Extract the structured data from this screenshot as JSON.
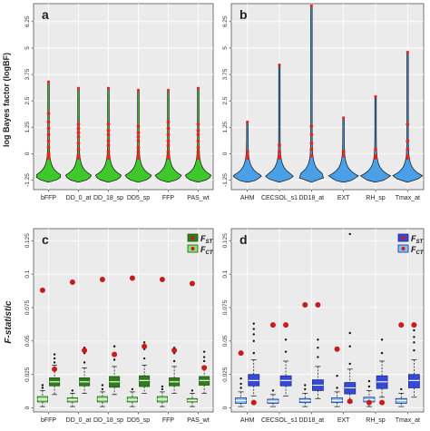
{
  "colors": {
    "green_fill": "#3ec82c",
    "green_dark": "#2f7d1b",
    "green_light": "#8fe07a",
    "blue_fill": "#4aa0e6",
    "blue_dark": "#3648d6",
    "blue_light": "#88bff0",
    "red_point": "#e8231c",
    "dark_red_point": "#c41d1d",
    "panel_bg": "#ebebeb",
    "grid": "#ffffff"
  },
  "chart_data": [
    {
      "id": "a",
      "type": "violin",
      "panel_label": "a",
      "ylabel": "log Bayes factor (logBF)",
      "yticks": [
        "-1.25",
        "0",
        "1.25",
        "2.5",
        "3.75",
        "5",
        "6.25"
      ],
      "ylim": [
        -1.7,
        7.1
      ],
      "categories": [
        "bFFP",
        "DD_0_at",
        "DD_18_sp",
        "DD5_sp",
        "FFP",
        "PAS_wt"
      ],
      "max_logbf": [
        3.4,
        3.1,
        3.1,
        3.0,
        3.0,
        3.1
      ],
      "mode": -1.05,
      "significant_points": [
        [
          1.9,
          1.5,
          1.2,
          0.9,
          0.6,
          0.3,
          0.0,
          -0.1,
          -0.2
        ],
        [
          1.4,
          1.2,
          1.0,
          0.8,
          0.5,
          0.2,
          -0.1,
          -0.2
        ],
        [
          1.4,
          1.1,
          0.9,
          0.6,
          0.4,
          0.1,
          -0.1,
          -0.2
        ],
        [
          1.3,
          1.0,
          0.8,
          0.6,
          0.3,
          0.1,
          -0.1,
          -0.2
        ],
        [
          1.5,
          1.2,
          0.9,
          0.6,
          0.4,
          0.1,
          -0.1,
          -0.2
        ],
        [
          1.4,
          1.1,
          0.9,
          0.6,
          0.3,
          0.1,
          -0.1,
          -0.2
        ]
      ]
    },
    {
      "id": "b",
      "type": "violin",
      "panel_label": "b",
      "ylabel": "",
      "yticks": [
        "-1.25",
        "0",
        "1.25",
        "2.5",
        "3.75",
        "5",
        "6.25"
      ],
      "ylim": [
        -1.7,
        7.1
      ],
      "categories": [
        "AHM",
        "CECSOL_s1",
        "DD18_at",
        "EXT",
        "RH_sp",
        "Tmax_at"
      ],
      "max_logbf": [
        1.5,
        4.2,
        7.0,
        1.7,
        2.7,
        4.8
      ],
      "mode": -1.05,
      "significant_points": [
        [
          0.1,
          -0.1,
          -0.2
        ],
        [
          0.4,
          0.1,
          -0.1,
          -0.2
        ],
        [
          1.3,
          0.9,
          0.5,
          0.2,
          -0.1
        ],
        [
          0.1,
          -0.1
        ],
        [
          0.2,
          -0.1,
          -0.2
        ],
        [
          1.4,
          0.6,
          0.2,
          -0.1,
          -0.2
        ]
      ]
    },
    {
      "id": "c",
      "type": "boxplot",
      "panel_label": "c",
      "ylabel": "F-statistic",
      "yticks": [
        "0",
        "0.025",
        "0.05",
        "0.075",
        "0.1",
        "0.125"
      ],
      "ylim": [
        -0.003,
        0.134
      ],
      "categories": [
        "bFFP",
        "DD_0_at",
        "DD_18_sp",
        "DD5_sp",
        "FFP",
        "PAS_wt"
      ],
      "legend": [
        "F_ST",
        "F_CT"
      ],
      "fst": [
        {
          "q1": 0.0165,
          "med": 0.0195,
          "q3": 0.0225,
          "lo": 0.01,
          "hi": 0.032,
          "out": [
            0.034,
            0.037,
            0.04
          ],
          "mean": 0.029
        },
        {
          "q1": 0.0165,
          "med": 0.0195,
          "q3": 0.0225,
          "lo": 0.011,
          "hi": 0.03,
          "out": [
            0.034,
            0.041,
            0.045
          ],
          "mean": 0.043
        },
        {
          "q1": 0.0155,
          "med": 0.0195,
          "q3": 0.0235,
          "lo": 0.01,
          "hi": 0.031,
          "out": [
            0.036,
            0.041,
            0.046
          ],
          "mean": 0.04
        },
        {
          "q1": 0.016,
          "med": 0.0205,
          "q3": 0.024,
          "lo": 0.011,
          "hi": 0.032,
          "out": [
            0.037,
            0.044,
            0.049
          ],
          "mean": 0.046
        },
        {
          "q1": 0.0165,
          "med": 0.0195,
          "q3": 0.0225,
          "lo": 0.011,
          "hi": 0.031,
          "out": [
            0.035,
            0.041,
            0.045
          ],
          "mean": 0.043
        },
        {
          "q1": 0.017,
          "med": 0.0205,
          "q3": 0.0235,
          "lo": 0.011,
          "hi": 0.031,
          "out": [
            0.035,
            0.038,
            0.042
          ],
          "mean": 0.03
        }
      ],
      "fct": [
        {
          "q1": 0.0045,
          "med": 0.0065,
          "q3": 0.0085,
          "lo": 0.001,
          "hi": 0.013,
          "out": [
            0.015,
            0.017
          ],
          "mean": 0.088
        },
        {
          "q1": 0.0045,
          "med": 0.006,
          "q3": 0.0075,
          "lo": 0.001,
          "hi": 0.011,
          "out": [
            0.013
          ],
          "mean": 0.094
        },
        {
          "q1": 0.0045,
          "med": 0.0065,
          "q3": 0.0085,
          "lo": 0.001,
          "hi": 0.012,
          "out": [
            0.014,
            0.017
          ],
          "mean": 0.096
        },
        {
          "q1": 0.0045,
          "med": 0.006,
          "q3": 0.008,
          "lo": 0.001,
          "hi": 0.012,
          "out": [
            0.014
          ],
          "mean": 0.097
        },
        {
          "q1": 0.0045,
          "med": 0.0065,
          "q3": 0.0085,
          "lo": 0.001,
          "hi": 0.012,
          "out": [
            0.014,
            0.016
          ],
          "mean": 0.096
        },
        {
          "q1": 0.0045,
          "med": 0.0055,
          "q3": 0.007,
          "lo": 0.001,
          "hi": 0.011,
          "out": [
            0.013
          ],
          "mean": 0.093
        }
      ]
    },
    {
      "id": "d",
      "type": "boxplot",
      "panel_label": "d",
      "ylabel": "",
      "yticks": [
        "0",
        "0.025",
        "0.05",
        "0.075",
        "0.1",
        "0.125"
      ],
      "ylim": [
        -0.003,
        0.134
      ],
      "categories": [
        "AHM",
        "CECSOL_s1",
        "DD18_at",
        "EXT",
        "RH_sp",
        "Tmax_at"
      ],
      "legend": [
        "F_ST",
        "F_CT"
      ],
      "fst": [
        {
          "q1": 0.0165,
          "med": 0.0205,
          "q3": 0.025,
          "lo": 0.009,
          "hi": 0.036,
          "out": [
            0.041,
            0.05,
            0.055,
            0.059,
            0.063
          ],
          "mean": 0.004
        },
        {
          "q1": 0.0165,
          "med": 0.0205,
          "q3": 0.024,
          "lo": 0.009,
          "hi": 0.035,
          "out": [
            0.042,
            0.051
          ],
          "mean": 0.062
        },
        {
          "q1": 0.013,
          "med": 0.017,
          "q3": 0.021,
          "lo": 0.007,
          "hi": 0.031,
          "out": [
            0.038,
            0.045,
            0.051
          ],
          "mean": 0.077
        },
        {
          "q1": 0.0105,
          "med": 0.015,
          "q3": 0.019,
          "lo": 0.004,
          "hi": 0.029,
          "out": [
            0.033,
            0.046,
            0.056,
            0.13
          ],
          "mean": 0.005
        },
        {
          "q1": 0.0145,
          "med": 0.0195,
          "q3": 0.024,
          "lo": 0.008,
          "hi": 0.035,
          "out": [
            0.041,
            0.051
          ],
          "mean": 0.004
        },
        {
          "q1": 0.015,
          "med": 0.0205,
          "q3": 0.025,
          "lo": 0.008,
          "hi": 0.036,
          "out": [
            0.043,
            0.049,
            0.053,
            0.058
          ],
          "mean": 0.062
        }
      ],
      "fct": [
        {
          "q1": 0.0035,
          "med": 0.0055,
          "q3": 0.0075,
          "lo": 0.001,
          "hi": 0.012,
          "out": [
            0.015,
            0.018,
            0.022
          ],
          "mean": 0.041
        },
        {
          "q1": 0.0035,
          "med": 0.005,
          "q3": 0.0065,
          "lo": 0.001,
          "hi": 0.01,
          "out": [
            0.013
          ],
          "mean": 0.062
        },
        {
          "q1": 0.004,
          "med": 0.0055,
          "q3": 0.007,
          "lo": 0.001,
          "hi": 0.011,
          "out": [
            0.014,
            0.017
          ],
          "mean": 0.077
        },
        {
          "q1": 0.004,
          "med": 0.0055,
          "q3": 0.0075,
          "lo": 0.001,
          "hi": 0.012,
          "out": [
            0.015,
            0.024
          ],
          "mean": 0.044
        },
        {
          "q1": 0.0045,
          "med": 0.006,
          "q3": 0.008,
          "lo": 0.001,
          "hi": 0.013,
          "out": [
            0.016,
            0.02
          ],
          "mean": 0.004
        },
        {
          "q1": 0.0035,
          "med": 0.0055,
          "q3": 0.007,
          "lo": 0.001,
          "hi": 0.011,
          "out": [
            0.014
          ],
          "mean": 0.062
        }
      ]
    }
  ]
}
